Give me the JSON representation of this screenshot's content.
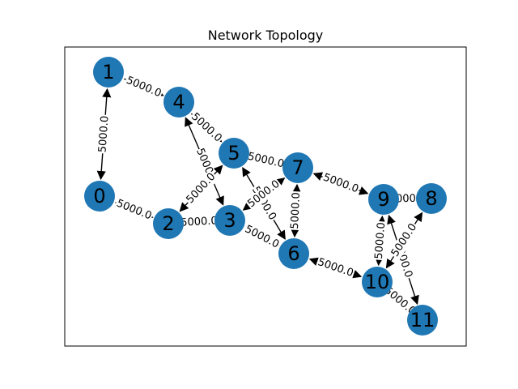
{
  "figure": {
    "title": "Network Topology",
    "node_color": "#1f77b4",
    "edge_color": "#000000"
  },
  "nodes": [
    "0",
    "1",
    "2",
    "3",
    "4",
    "5",
    "6",
    "7",
    "8",
    "9",
    "10",
    "11"
  ],
  "edges": [
    {
      "from": "0",
      "to": "1",
      "label": "5000.0",
      "bidirectional": true
    },
    {
      "from": "0",
      "to": "2",
      "label": "5000.0",
      "bidirectional": false
    },
    {
      "from": "1",
      "to": "4",
      "label": "5000.0",
      "bidirectional": false
    },
    {
      "from": "4",
      "to": "5",
      "label": "5000.0",
      "bidirectional": false
    },
    {
      "from": "4",
      "to": "3",
      "label": "5000",
      "bidirectional": true
    },
    {
      "from": "2",
      "to": "5",
      "label": "5000.0",
      "bidirectional": true
    },
    {
      "from": "2",
      "to": "3",
      "label": "5000.0",
      "bidirectional": false
    },
    {
      "from": "5",
      "to": "7",
      "label": "5000.0",
      "bidirectional": false
    },
    {
      "from": "5",
      "to": "6",
      "label": "5000.0",
      "bidirectional": true
    },
    {
      "from": "3",
      "to": "7",
      "label": "5000.0",
      "bidirectional": true
    },
    {
      "from": "3",
      "to": "6",
      "label": "5000.0",
      "bidirectional": false
    },
    {
      "from": "6",
      "to": "7",
      "label": "5000.0",
      "bidirectional": true
    },
    {
      "from": "7",
      "to": "9",
      "label": "5000.0",
      "bidirectional": true
    },
    {
      "from": "6",
      "to": "10",
      "label": "5000.0",
      "bidirectional": true
    },
    {
      "from": "9",
      "to": "10",
      "label": "5000.0",
      "bidirectional": true
    },
    {
      "from": "9",
      "to": "8",
      "label": "5000.0",
      "bidirectional": false
    },
    {
      "from": "9",
      "to": "11",
      "label": "5000.0",
      "bidirectional": true
    },
    {
      "from": "10",
      "to": "8",
      "label": "5000.0",
      "bidirectional": true
    },
    {
      "from": "10",
      "to": "11",
      "label": "5000.0",
      "bidirectional": false
    }
  ]
}
